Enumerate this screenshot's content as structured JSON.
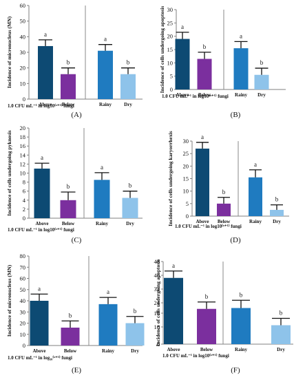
{
  "colors": {
    "above": "#0d4a73",
    "below": "#7b2f9e",
    "rainy": "#1f7bc0",
    "dry": "#8ec3ea",
    "axis": "#7f7f7f",
    "divider": "#8a8a8a",
    "errorbar": "#111111"
  },
  "chart_data": [
    {
      "type": "bar",
      "panel_label": "(A)",
      "ylabel": "Incidence of micronucleus (MN)",
      "xlabel": "1.0 CFU mL⁻¹ in log10⁽ˣ⁺¹⁾ fungi",
      "categories": [
        "Above",
        "Below",
        "Rainy",
        "Dry"
      ],
      "values": [
        34,
        16,
        31,
        16
      ],
      "errors": [
        4,
        4,
        4,
        4
      ],
      "letters": [
        "a",
        "b",
        "a",
        "b"
      ],
      "ylim": [
        0,
        60
      ],
      "yticks": [
        "0",
        "10",
        "20",
        "30",
        "40",
        "50",
        "60"
      ],
      "grid": false,
      "divider_after": 2
    },
    {
      "type": "bar",
      "panel_label": "(B)",
      "ylabel": "Incidence of cells undergoing apoptosis",
      "xlabel": "1.0 CFU mL⁻¹ in log10⁽ˣ⁺¹⁾ fungi",
      "categories": [
        "Above",
        "Below",
        "Rainy",
        "Dry"
      ],
      "values": [
        19,
        11.5,
        15.5,
        5.5
      ],
      "errors": [
        2.5,
        2.5,
        2.5,
        2.5
      ],
      "letters": [
        "a",
        "b",
        "a",
        "b"
      ],
      "ylim": [
        0,
        30
      ],
      "yticks": [
        "0",
        "5",
        "10",
        "15",
        "20",
        "25",
        "30"
      ],
      "grid": false,
      "divider_after": 2
    },
    {
      "type": "bar",
      "panel_label": "(C)",
      "ylabel": "Incidence of cells undergoing pyknosis",
      "xlabel": "1.0 CFU mL⁻¹ in log10⁽ˣ⁺¹⁾ fungi",
      "categories": [
        "Above",
        "Below",
        "Rainy",
        "Dry"
      ],
      "values": [
        11,
        4,
        8.5,
        4.5
      ],
      "errors": [
        1.2,
        1.8,
        1.6,
        1.5
      ],
      "letters": [
        "a",
        "b",
        "a",
        "b"
      ],
      "ylim": [
        0,
        20
      ],
      "yticks": [
        "0",
        "2",
        "4",
        "6",
        "8",
        "10",
        "12",
        "14",
        "16",
        "18",
        "20"
      ],
      "grid": false,
      "divider_after": 2
    },
    {
      "type": "bar",
      "panel_label": "(D)",
      "ylabel": "Incidence of cells undergoing karyorrhexis",
      "xlabel": "1.0 CFU mL⁻¹ in log10⁽ˣ⁺¹⁾ fungi",
      "categories": [
        "Above",
        "Below",
        "Rainy",
        "Dry"
      ],
      "values": [
        27,
        5,
        15.5,
        2.5
      ],
      "errors": [
        2.5,
        2.5,
        3,
        2
      ],
      "letters": [
        "a",
        "b",
        "a",
        "b"
      ],
      "ylim": [
        0,
        30
      ],
      "yticks": [
        "0",
        "5",
        "10",
        "15",
        "20",
        "25",
        "30"
      ],
      "grid": false,
      "divider_after": 2
    },
    {
      "type": "bar",
      "panel_label": "(E)",
      "ylabel": "Incidence of micronucleus (MN)",
      "xlabel": "1.0 CFU mL⁻¹ in log₁₀⁽ˣ⁺¹⁾ fungi",
      "categories": [
        "Above",
        "Below",
        "Rainy",
        "Dry"
      ],
      "values": [
        40,
        16,
        37,
        20
      ],
      "errors": [
        6,
        6,
        6,
        6
      ],
      "letters": [
        "a",
        "b",
        "a",
        "b"
      ],
      "ylim": [
        0,
        80
      ],
      "yticks": [
        "0",
        "10",
        "20",
        "30",
        "40",
        "50",
        "60",
        "70",
        "80"
      ],
      "grid": false,
      "divider_after": 2
    },
    {
      "type": "bar",
      "panel_label": "(F)",
      "ylabel": "Incidence of cells undergoing apoptosis",
      "xlabel": "1.0 CFU mL⁻¹ in log10⁽ˣ⁺¹⁾ fungi",
      "categories": [
        "Above",
        "Below",
        "Rainy",
        "Dry"
      ],
      "values": [
        38.5,
        20.5,
        21,
        11
      ],
      "errors": [
        4,
        4,
        4.5,
        4
      ],
      "letters": [
        "a",
        "b",
        "b",
        "b"
      ],
      "ylim": [
        0,
        48
      ],
      "yticks": [
        "0",
        "10",
        "18",
        "24",
        "32",
        "40",
        "48"
      ],
      "grid": false,
      "divider_after": 2
    }
  ]
}
